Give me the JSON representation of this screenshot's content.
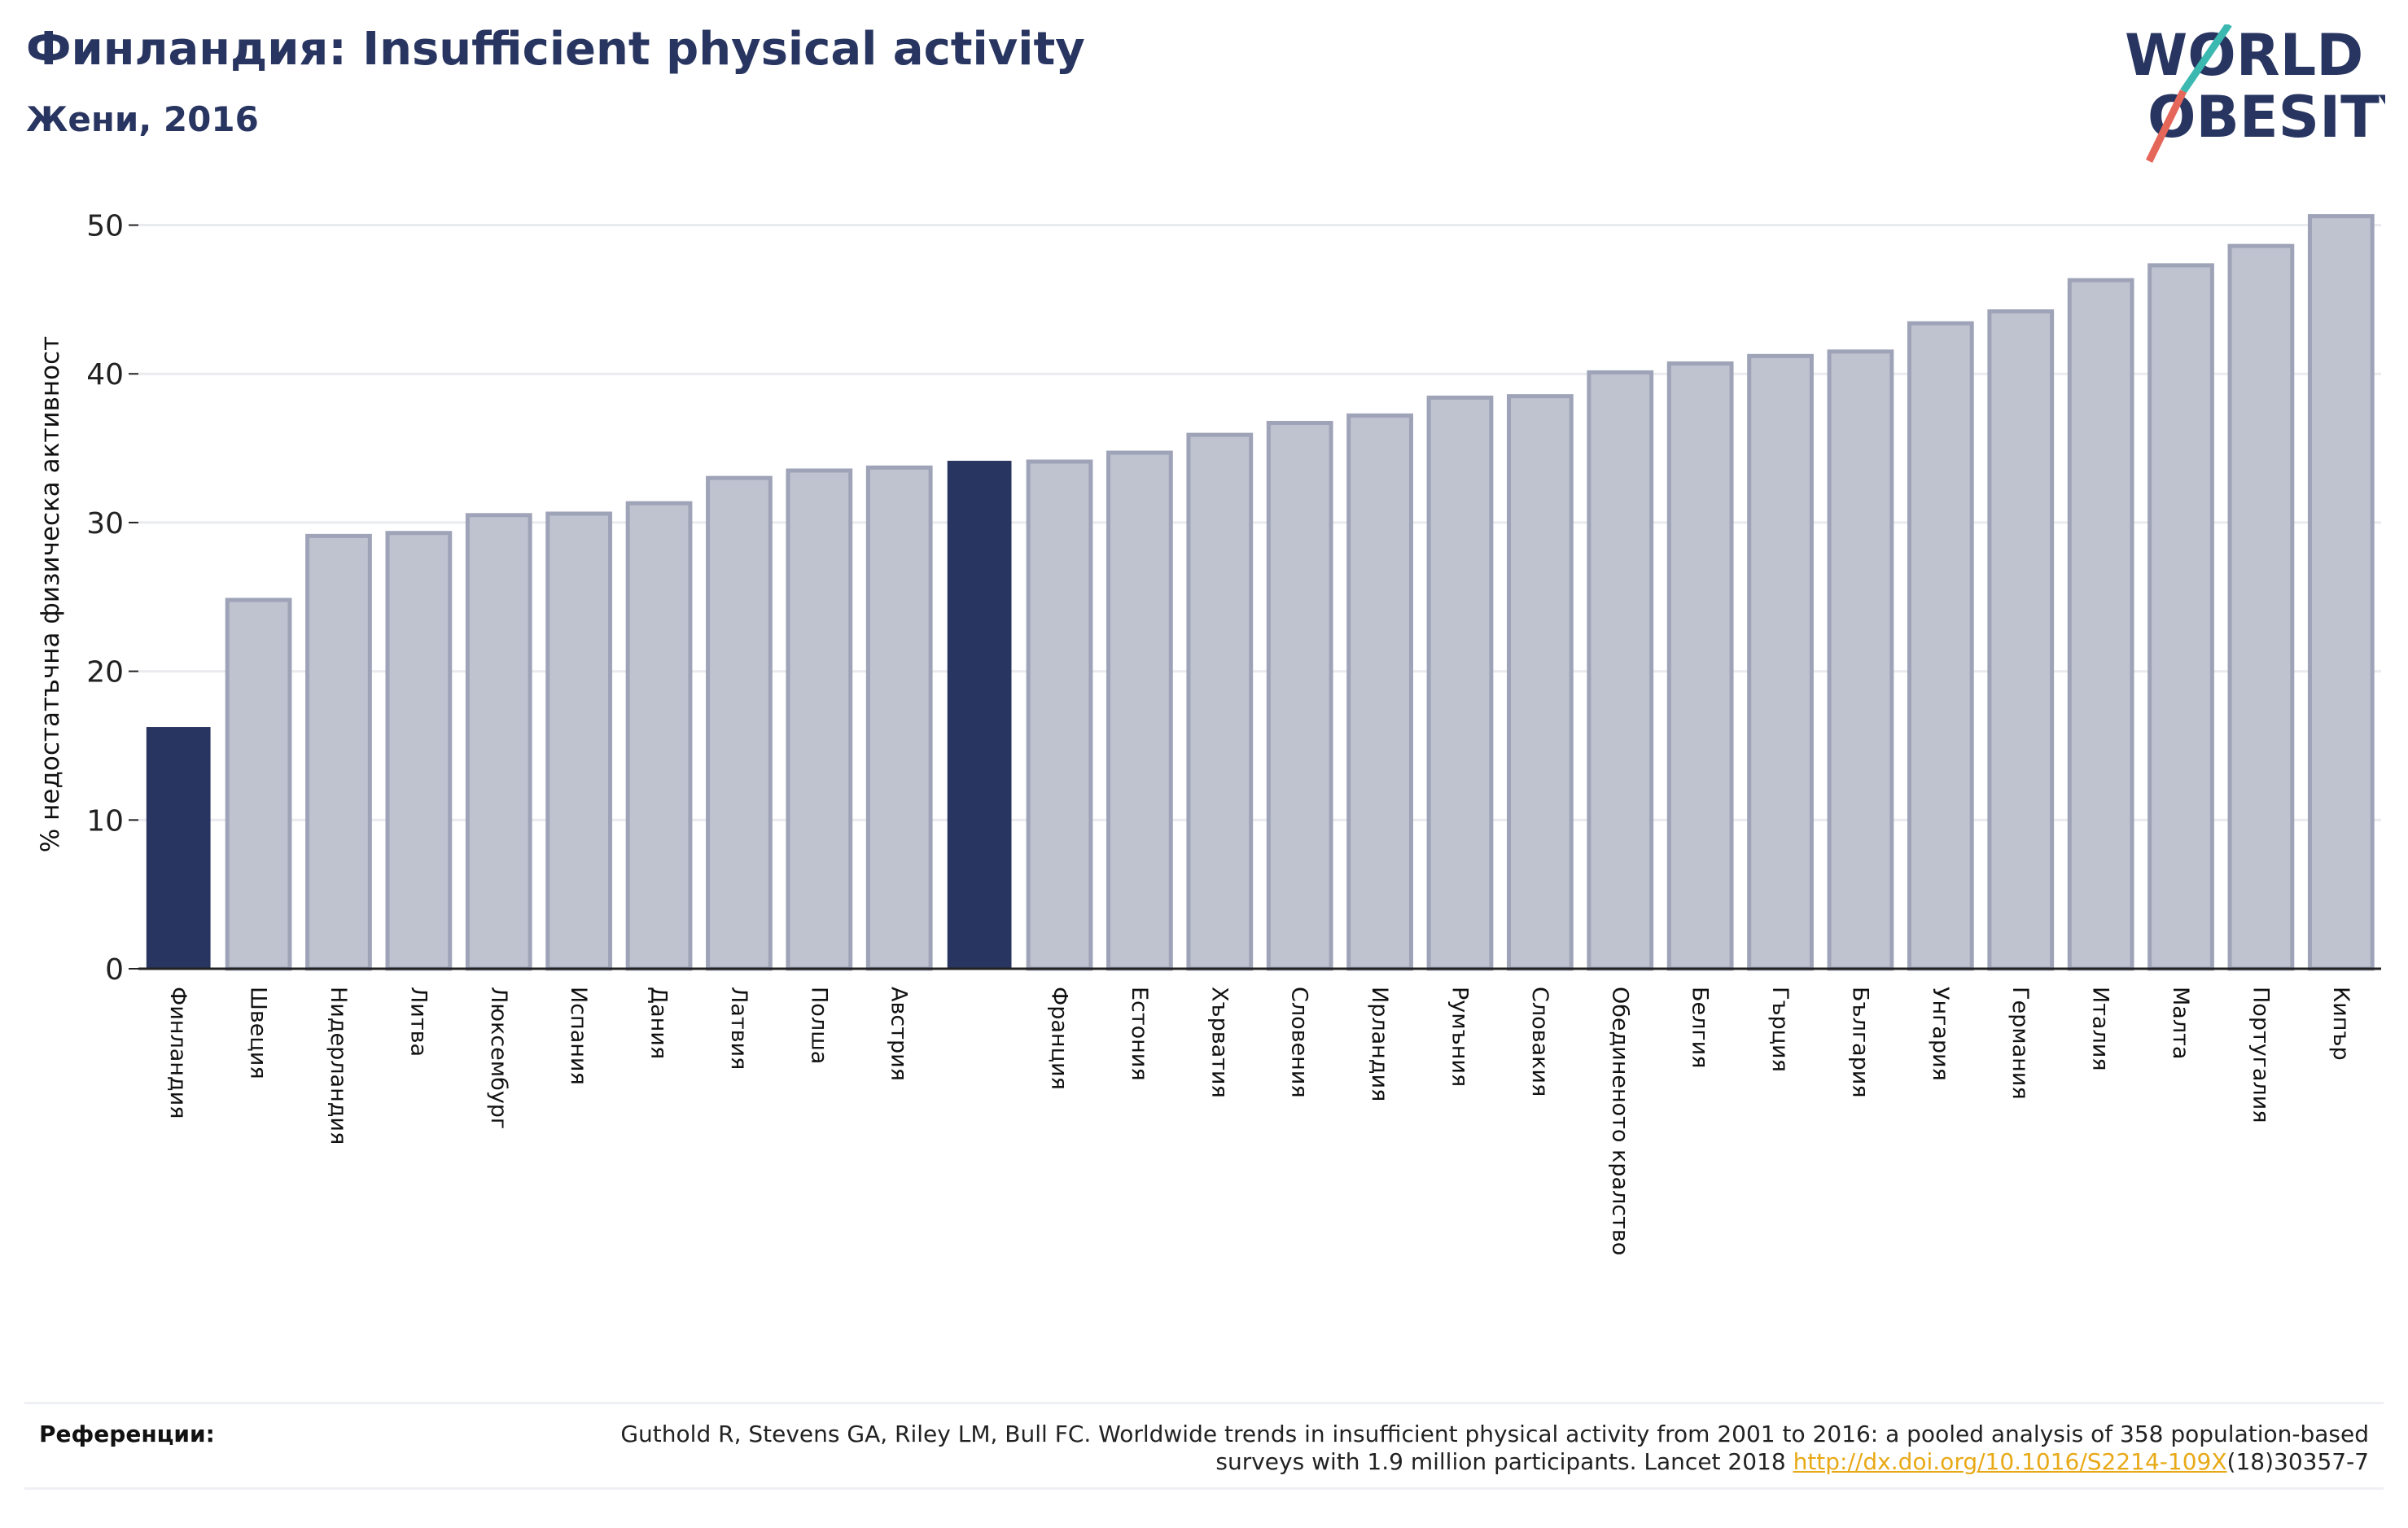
{
  "title": "Финландия: Insufficient physical activity",
  "subtitle": "Жени, 2016",
  "logo": {
    "line1": "WORLD",
    "line2": "OBESITY"
  },
  "references": {
    "label": "Референции:",
    "text": "Guthold R, Stevens GA, Riley LM, Bull FC. Worldwide trends in insufficient physical activity from 2001 to 2016: a pooled analysis of 358 population-based surveys with 1.9 million participants. Lancet 2018 ",
    "link": "http://dx.doi.org/10.1016/S2214-109X",
    "suffix": "(18)30357-7"
  },
  "colors": {
    "highlight": "#283560",
    "bar": "#bfc2cf",
    "bar_edge": "#9ea3b8",
    "title": "#283560",
    "link": "#e8a917"
  },
  "chart_data": {
    "type": "bar",
    "ylabel": "% недостатъчна физическа активност",
    "xlabel": "",
    "ylim": [
      0,
      52
    ],
    "yticks": [
      0,
      10,
      20,
      30,
      40,
      50
    ],
    "grid": true,
    "categories": [
      "Финландия",
      "Швеция",
      "Нидерландия",
      "Литва",
      "Люксембург",
      "Испания",
      "Дания",
      "Латвия",
      "Полша",
      "Австрия",
      "",
      "Франция",
      "Естония",
      "Хърватия",
      "Словения",
      "Ирландия",
      "Румъния",
      "Словакия",
      "Обединеното кралство",
      "Белгия",
      "Гърция",
      "България",
      "Унгария",
      "Германия",
      "Италия",
      "Малта",
      "Португалия",
      "Кипър"
    ],
    "values": [
      16.2,
      24.8,
      29.1,
      29.3,
      30.5,
      30.6,
      31.3,
      33.0,
      33.5,
      33.7,
      34.1,
      34.1,
      34.7,
      35.9,
      36.7,
      37.2,
      38.4,
      38.5,
      40.1,
      40.7,
      41.2,
      41.5,
      43.4,
      44.2,
      46.3,
      47.3,
      48.6,
      50.6
    ],
    "highlighted": [
      0,
      10
    ]
  }
}
